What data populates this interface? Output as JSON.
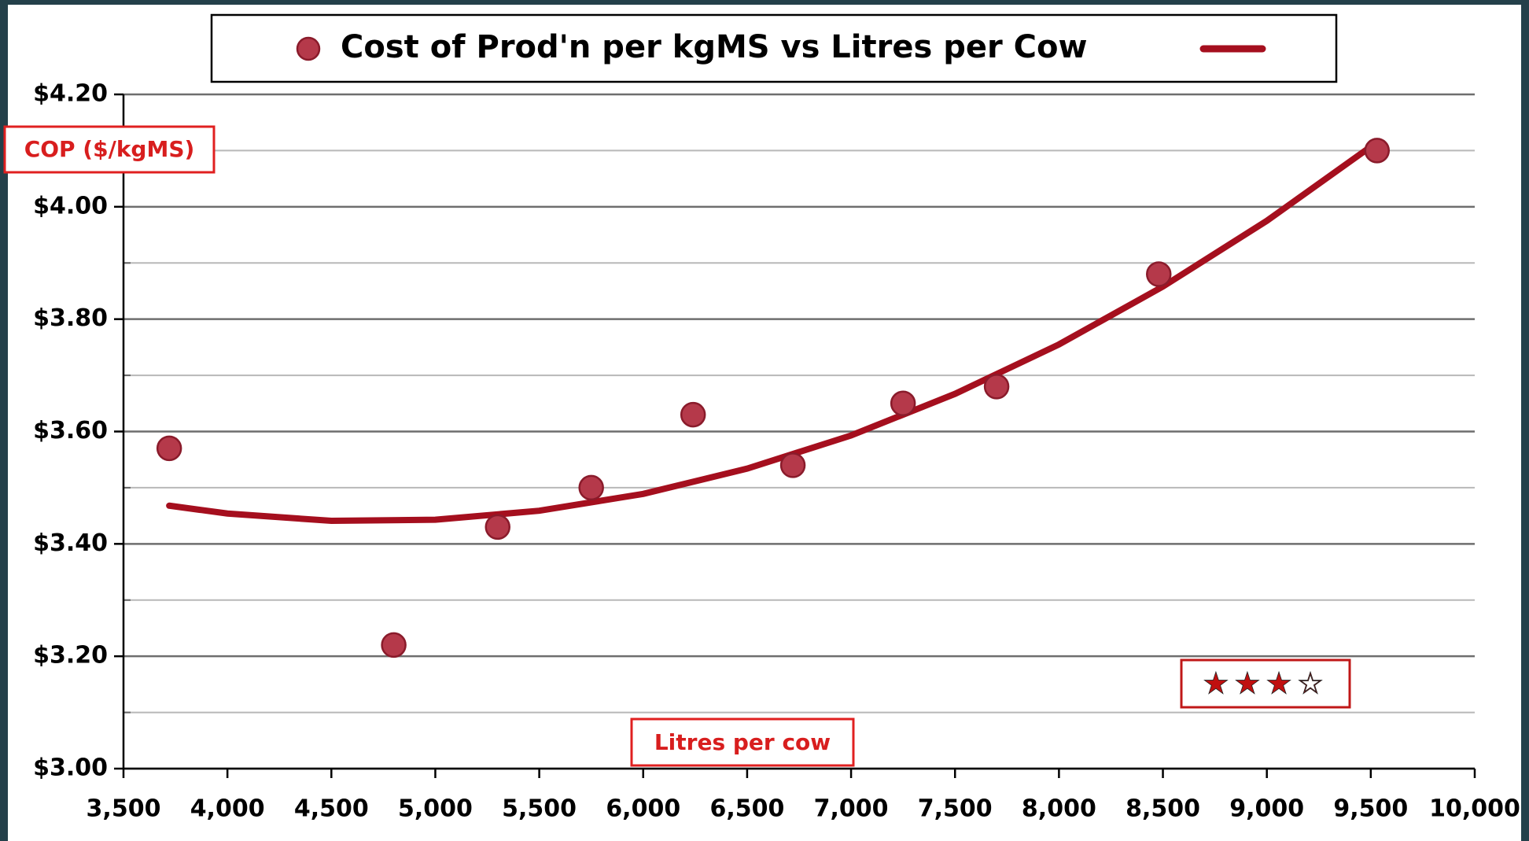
{
  "chart_data": {
    "type": "scatter",
    "series": [
      {
        "name": "Cost of Prod'n per kgMS vs Litres per Cow",
        "color": "#b5394a",
        "stroke": "#8a1b2b",
        "x": [
          3720,
          4800,
          5300,
          5750,
          6240,
          6720,
          7250,
          7700,
          8480,
          9530
        ],
        "values": [
          3.57,
          3.22,
          3.43,
          3.5,
          3.63,
          3.54,
          3.65,
          3.68,
          3.88,
          4.1
        ]
      }
    ],
    "trendline": {
      "color": "#a50f1e",
      "x": [
        3720,
        4000,
        4500,
        5000,
        5500,
        6000,
        6500,
        7000,
        7500,
        8000,
        8500,
        9000,
        9530
      ],
      "values": [
        3.468,
        3.454,
        3.441,
        3.443,
        3.459,
        3.489,
        3.534,
        3.593,
        3.667,
        3.755,
        3.858,
        3.975,
        4.115
      ]
    },
    "y_label": "COP ($/kgMS)",
    "x_label": "Litres per cow",
    "rating": "★★★☆",
    "xlim": [
      3500,
      10000
    ],
    "xticks": [
      {
        "value": 3500,
        "label": "3,500"
      },
      {
        "value": 4000,
        "label": "4,000"
      },
      {
        "value": 4500,
        "label": "4,500"
      },
      {
        "value": 5000,
        "label": "5,000"
      },
      {
        "value": 5500,
        "label": "5,500"
      },
      {
        "value": 6000,
        "label": "6,000"
      },
      {
        "value": 6500,
        "label": "6,500"
      },
      {
        "value": 7000,
        "label": "7,000"
      },
      {
        "value": 7500,
        "label": "7,500"
      },
      {
        "value": 8000,
        "label": "8,000"
      },
      {
        "value": 8500,
        "label": "8,500"
      },
      {
        "value": 9000,
        "label": "9,000"
      },
      {
        "value": 9500,
        "label": "9,500"
      },
      {
        "value": 10000,
        "label": "10,000"
      }
    ],
    "ylim": [
      3.0,
      4.2
    ],
    "yticks": [
      {
        "value": 3.0,
        "label": "$3.00"
      },
      {
        "value": 3.2,
        "label": "$3.20"
      },
      {
        "value": 3.4,
        "label": "$3.40"
      },
      {
        "value": 3.6,
        "label": "$3.60"
      },
      {
        "value": 3.8,
        "label": "$3.80"
      },
      {
        "value": 4.0,
        "label": "$4.00"
      },
      {
        "value": 4.2,
        "label": "$4.20"
      }
    ],
    "minor_yticks": [
      3.1,
      3.3,
      3.5,
      3.7,
      3.9,
      4.1
    ],
    "grid": true
  }
}
